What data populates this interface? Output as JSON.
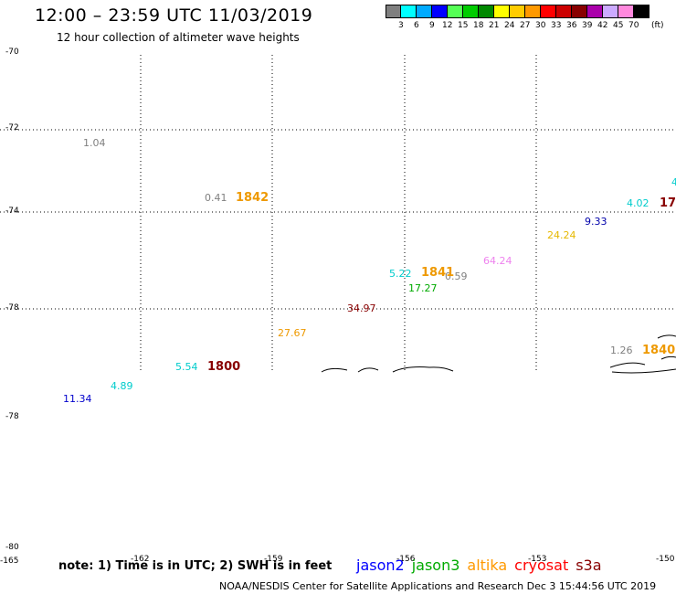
{
  "title": "12:00 – 23:59 UTC 11/03/2019",
  "subtitle": "12 hour collection of altimeter wave heights",
  "scale": {
    "colors": [
      "#7f7f7f",
      "#00ffff",
      "#00aaff",
      "#0000ff",
      "#55ff55",
      "#00cc00",
      "#008800",
      "#ffff00",
      "#ffcc00",
      "#ff9900",
      "#ff0000",
      "#cc0000",
      "#880000",
      "#aa00aa",
      "#ccaaff",
      "#ff88dd",
      "#000000"
    ],
    "ticks": [
      "3",
      "6",
      "9",
      "12",
      "15",
      "18",
      "21",
      "24",
      "27",
      "30",
      "33",
      "36",
      "39",
      "42",
      "45",
      "70"
    ],
    "unit": "(ft)"
  },
  "y_axis": [
    "-70",
    "-72",
    "-74",
    "-78",
    "-78",
    "-80"
  ],
  "x_axis": [
    "-165",
    "-162",
    "-159",
    "-156",
    "-153",
    "-150"
  ],
  "observations": [
    {
      "value": "1.04",
      "color": "#808080"
    },
    {
      "value": "0.41",
      "color": "#808080"
    },
    {
      "value": "4.02",
      "color": "#00cccc"
    },
    {
      "value": "9.33",
      "color": "#0000aa"
    },
    {
      "value": "24.24",
      "color": "#e6b800"
    },
    {
      "value": "64.24",
      "color": "#ee82ee"
    },
    {
      "value": "5.22",
      "color": "#00cccc"
    },
    {
      "value": "0.59",
      "color": "#808080"
    },
    {
      "value": "17.27",
      "color": "#00aa00"
    },
    {
      "value": "34.97",
      "color": "#880000"
    },
    {
      "value": "27.67",
      "color": "#ee9900"
    },
    {
      "value": "1.26",
      "color": "#808080"
    },
    {
      "value": "5.54",
      "color": "#00cccc"
    },
    {
      "value": "4.89",
      "color": "#00cccc"
    },
    {
      "value": "11.34",
      "color": "#0000cc"
    },
    {
      "value": "4",
      "color": "#00cccc"
    }
  ],
  "passes": [
    {
      "time": "1842",
      "color": "#ee9900"
    },
    {
      "time": "1841",
      "color": "#ee9900"
    },
    {
      "time": "1800",
      "color": "#880000"
    },
    {
      "time": "1840",
      "color": "#ee9900"
    },
    {
      "time": "17",
      "color": "#880000"
    }
  ],
  "note": "note: 1) Time is in UTC; 2) SWH is in feet",
  "satellites": [
    {
      "name": "jason2",
      "color": "#0000ff"
    },
    {
      "name": "jason3",
      "color": "#00aa00"
    },
    {
      "name": "altika",
      "color": "#ff9900"
    },
    {
      "name": "cryosat",
      "color": "#ff0000"
    },
    {
      "name": "s3a",
      "color": "#880000"
    }
  ],
  "credit": "NOAA/NESDIS Center for Satellite Applications and Research    Dec  3 15:44:56 UTC 2019"
}
